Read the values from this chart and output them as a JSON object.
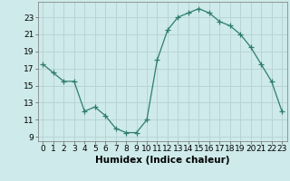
{
  "x": [
    0,
    1,
    2,
    3,
    4,
    5,
    6,
    7,
    8,
    9,
    10,
    11,
    12,
    13,
    14,
    15,
    16,
    17,
    18,
    19,
    20,
    21,
    22,
    23
  ],
  "y": [
    17.5,
    16.5,
    15.5,
    15.5,
    12.0,
    12.5,
    11.5,
    10.0,
    9.5,
    9.5,
    11.0,
    18.0,
    21.5,
    23.0,
    23.5,
    24.0,
    23.5,
    22.5,
    22.0,
    21.0,
    19.5,
    17.5,
    15.5,
    12.0
  ],
  "line_color": "#2e7d6e",
  "marker": "+",
  "marker_size": 4,
  "bg_color": "#ceeaea",
  "grid_color": "#b8d4d4",
  "xlabel": "Humidex (Indice chaleur)",
  "xlabel_fontsize": 7.5,
  "ylabel_ticks": [
    9,
    11,
    13,
    15,
    17,
    19,
    21,
    23
  ],
  "xlim": [
    -0.5,
    23.5
  ],
  "ylim": [
    8.5,
    24.8
  ],
  "tick_fontsize": 6.5
}
